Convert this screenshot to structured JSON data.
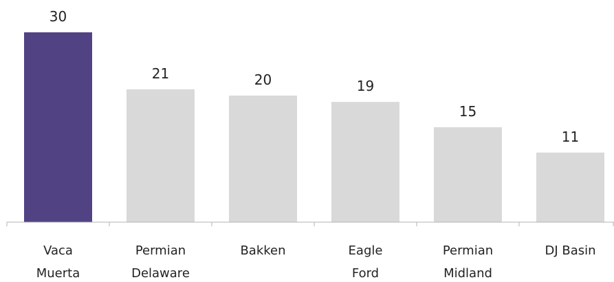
{
  "chart_data": {
    "type": "bar",
    "title": "",
    "xlabel": "",
    "ylabel": "",
    "categories": [
      [
        "Vaca",
        "Muerta"
      ],
      [
        "Permian",
        "Delaware"
      ],
      [
        "Bakken"
      ],
      [
        "Eagle",
        "Ford"
      ],
      [
        "Permian",
        "Midland"
      ],
      [
        "DJ Basin"
      ]
    ],
    "values": [
      30,
      21,
      20,
      19,
      15,
      11
    ],
    "ylim": [
      0,
      30
    ],
    "grid": false,
    "legend": "none",
    "colors": {
      "highlight": "#514284",
      "default": "#d9d9d9",
      "axis": "#b3b3b3"
    },
    "highlight_index": 0
  }
}
